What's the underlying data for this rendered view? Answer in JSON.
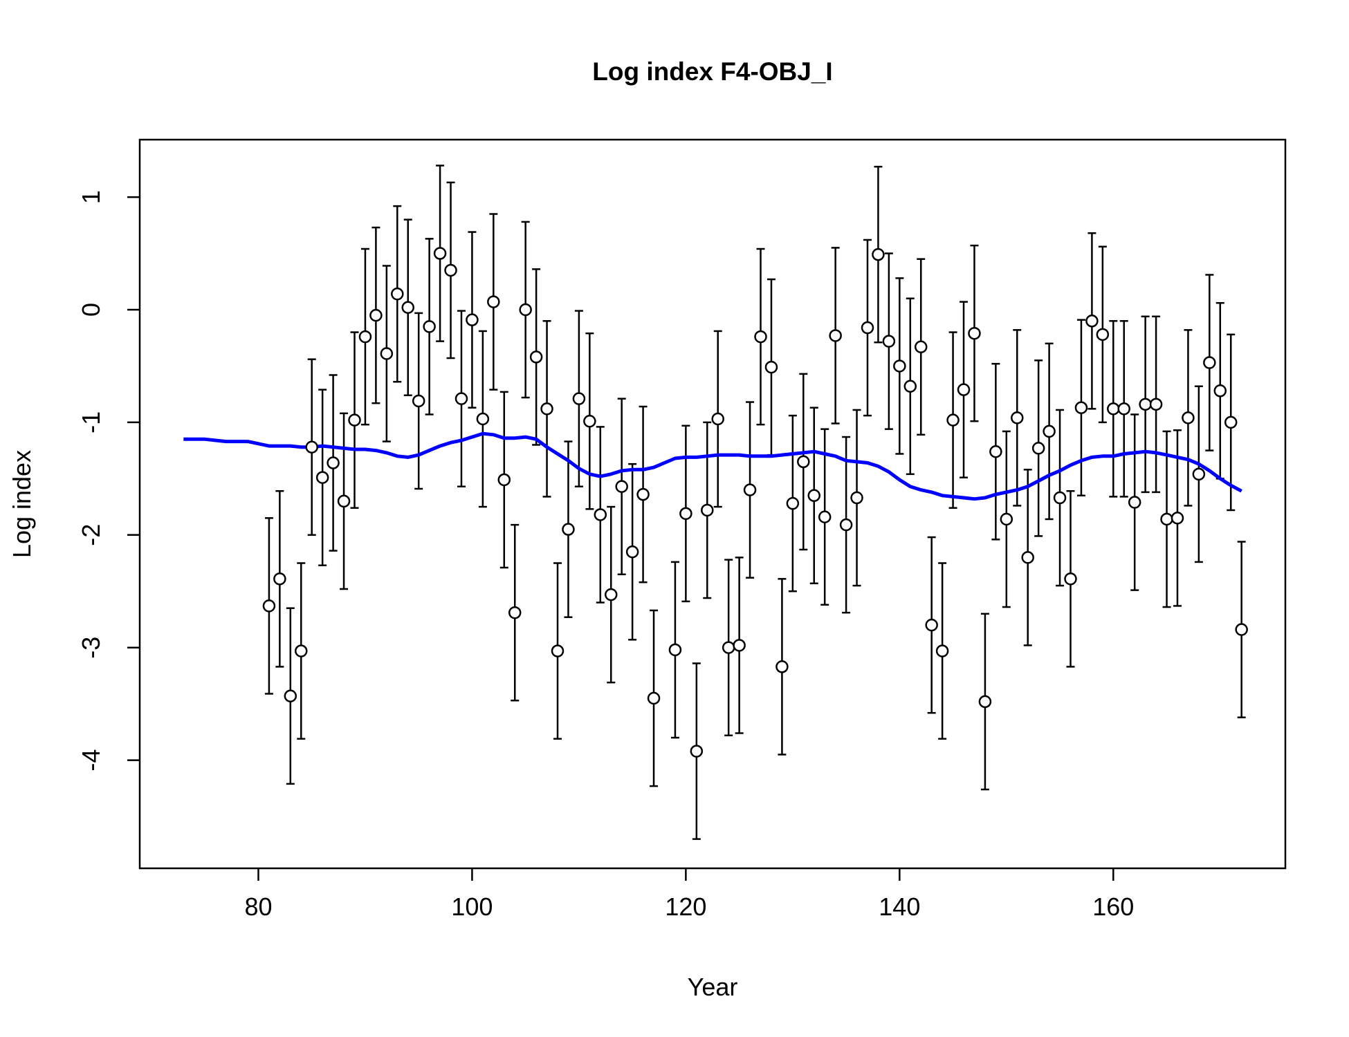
{
  "chart_data": {
    "type": "scatter",
    "title": "Log index F4-OBJ_I",
    "xlabel": "Year",
    "ylabel": "Log index",
    "xlim": [
      68.9,
      176.1
    ],
    "ylim": [
      -4.96,
      1.51
    ],
    "xticks": [
      80,
      100,
      120,
      140,
      160
    ],
    "yticks": [
      -4,
      -3,
      -2,
      -1,
      0,
      1
    ],
    "grid": false,
    "legend": "none",
    "colors": {
      "points": "#000000",
      "fit_line": "#0000ff"
    },
    "series": [
      {
        "type": "scatter-errorbar",
        "x": [
          81,
          82,
          83,
          84,
          85,
          86,
          87,
          88,
          89,
          90,
          91,
          92,
          93,
          94,
          95,
          96,
          97,
          98,
          99,
          100,
          101,
          102,
          103,
          104,
          105,
          106,
          107,
          108,
          109,
          110,
          111,
          112,
          113,
          114,
          115,
          116,
          117,
          119,
          120,
          121,
          122,
          123,
          124,
          125,
          126,
          127,
          128,
          129,
          130,
          131,
          132,
          133,
          134,
          135,
          136,
          137,
          138,
          139,
          140,
          141,
          142,
          143,
          144,
          145,
          146,
          147,
          148,
          149,
          150,
          151,
          152,
          153,
          154,
          155,
          156,
          157,
          158,
          159,
          160,
          161,
          162,
          163,
          164,
          165,
          166,
          167,
          168,
          169,
          170,
          171,
          172
        ],
        "y": [
          -2.63,
          -2.39,
          -3.43,
          -3.03,
          -1.22,
          -1.49,
          -1.36,
          -1.7,
          -0.98,
          -0.24,
          -0.05,
          -0.39,
          0.14,
          0.02,
          -0.81,
          -0.15,
          0.5,
          0.35,
          -0.79,
          -0.09,
          -0.97,
          0.07,
          -1.51,
          -2.69,
          0.0,
          -0.42,
          -0.88,
          -3.03,
          -1.95,
          -0.79,
          -0.99,
          -1.82,
          -2.53,
          -1.57,
          -2.15,
          -1.64,
          -3.45,
          -3.02,
          -1.81,
          -3.92,
          -1.78,
          -0.97,
          -3.0,
          -2.98,
          -1.6,
          -0.24,
          -0.51,
          -3.17,
          -1.72,
          -1.35,
          -1.65,
          -1.84,
          -0.23,
          -1.91,
          -1.67,
          -0.16,
          0.49,
          -0.28,
          -0.5,
          -0.68,
          -0.33,
          -2.8,
          -3.03,
          -0.98,
          -0.71,
          -0.21,
          -3.48,
          -1.26,
          -1.86,
          -0.96,
          -2.2,
          -1.23,
          -1.08,
          -1.67,
          -2.39,
          -0.87,
          -0.1,
          -0.22,
          -0.88,
          -0.88,
          -1.71,
          -0.84,
          -0.84,
          -1.86,
          -1.85,
          -0.96,
          -1.46,
          -0.47,
          -0.72,
          -1.0,
          -2.84
        ],
        "err": 0.78
      },
      {
        "type": "line",
        "x": [
          73,
          74,
          75,
          76,
          77,
          78,
          79,
          80,
          81,
          82,
          83,
          84,
          85,
          86,
          87,
          88,
          89,
          90,
          91,
          92,
          93,
          94,
          95,
          96,
          97,
          98,
          99,
          100,
          101,
          102,
          103,
          104,
          105,
          106,
          107,
          108,
          109,
          110,
          111,
          112,
          113,
          114,
          115,
          116,
          117,
          118,
          119,
          120,
          121,
          122,
          123,
          124,
          125,
          126,
          127,
          128,
          129,
          130,
          131,
          132,
          133,
          134,
          135,
          136,
          137,
          138,
          139,
          140,
          141,
          142,
          143,
          144,
          145,
          146,
          147,
          148,
          149,
          150,
          151,
          152,
          153,
          154,
          155,
          156,
          157,
          158,
          159,
          160,
          161,
          162,
          163,
          164,
          165,
          166,
          167,
          168,
          169,
          170,
          171,
          172
        ],
        "y": [
          -1.15,
          -1.15,
          -1.15,
          -1.16,
          -1.17,
          -1.17,
          -1.17,
          -1.19,
          -1.21,
          -1.21,
          -1.21,
          -1.22,
          -1.22,
          -1.21,
          -1.22,
          -1.23,
          -1.24,
          -1.24,
          -1.25,
          -1.27,
          -1.3,
          -1.31,
          -1.29,
          -1.25,
          -1.21,
          -1.18,
          -1.16,
          -1.13,
          -1.1,
          -1.11,
          -1.14,
          -1.14,
          -1.13,
          -1.15,
          -1.22,
          -1.28,
          -1.34,
          -1.41,
          -1.46,
          -1.48,
          -1.46,
          -1.43,
          -1.42,
          -1.42,
          -1.4,
          -1.36,
          -1.32,
          -1.31,
          -1.31,
          -1.3,
          -1.29,
          -1.29,
          -1.29,
          -1.3,
          -1.3,
          -1.3,
          -1.29,
          -1.28,
          -1.27,
          -1.26,
          -1.28,
          -1.3,
          -1.34,
          -1.35,
          -1.36,
          -1.39,
          -1.44,
          -1.51,
          -1.57,
          -1.6,
          -1.62,
          -1.65,
          -1.66,
          -1.67,
          -1.68,
          -1.67,
          -1.64,
          -1.62,
          -1.6,
          -1.57,
          -1.52,
          -1.47,
          -1.43,
          -1.38,
          -1.34,
          -1.31,
          -1.3,
          -1.3,
          -1.28,
          -1.27,
          -1.26,
          -1.27,
          -1.29,
          -1.31,
          -1.33,
          -1.37,
          -1.43,
          -1.5,
          -1.56,
          -1.61
        ]
      }
    ]
  }
}
